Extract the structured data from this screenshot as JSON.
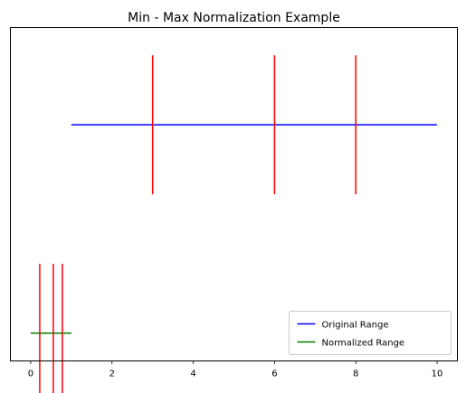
{
  "chart_data": {
    "type": "line",
    "title": "Min - Max Normalization Example",
    "xlabel": "",
    "ylabel": "",
    "xlim": [
      -0.5,
      10.5
    ],
    "ylim": [
      -0.2,
      2.2
    ],
    "x_ticks": [
      0,
      2,
      4,
      6,
      8,
      10
    ],
    "x_tick_labels": [
      "0",
      "2",
      "4",
      "6",
      "8",
      "10"
    ],
    "y_ticks_visible": false,
    "grid": false,
    "legend_position": "lower-right",
    "series": [
      {
        "name": "Original Range",
        "kind": "range-line",
        "color": "#0000ff",
        "x": [
          1,
          10
        ],
        "y": [
          1.5,
          1.5
        ],
        "markers": {
          "color": "#ff0000",
          "x": [
            3,
            6,
            8
          ],
          "y_range": [
            1.0,
            2.0
          ]
        }
      },
      {
        "name": "Normalized Range",
        "kind": "range-line",
        "color": "#008000",
        "x": [
          0,
          1
        ],
        "y": [
          0.0,
          0.0
        ],
        "markers": {
          "color": "#ff0000",
          "x": [
            0.222,
            0.556,
            0.778
          ],
          "y_range": [
            -0.5,
            0.5
          ]
        }
      }
    ]
  }
}
